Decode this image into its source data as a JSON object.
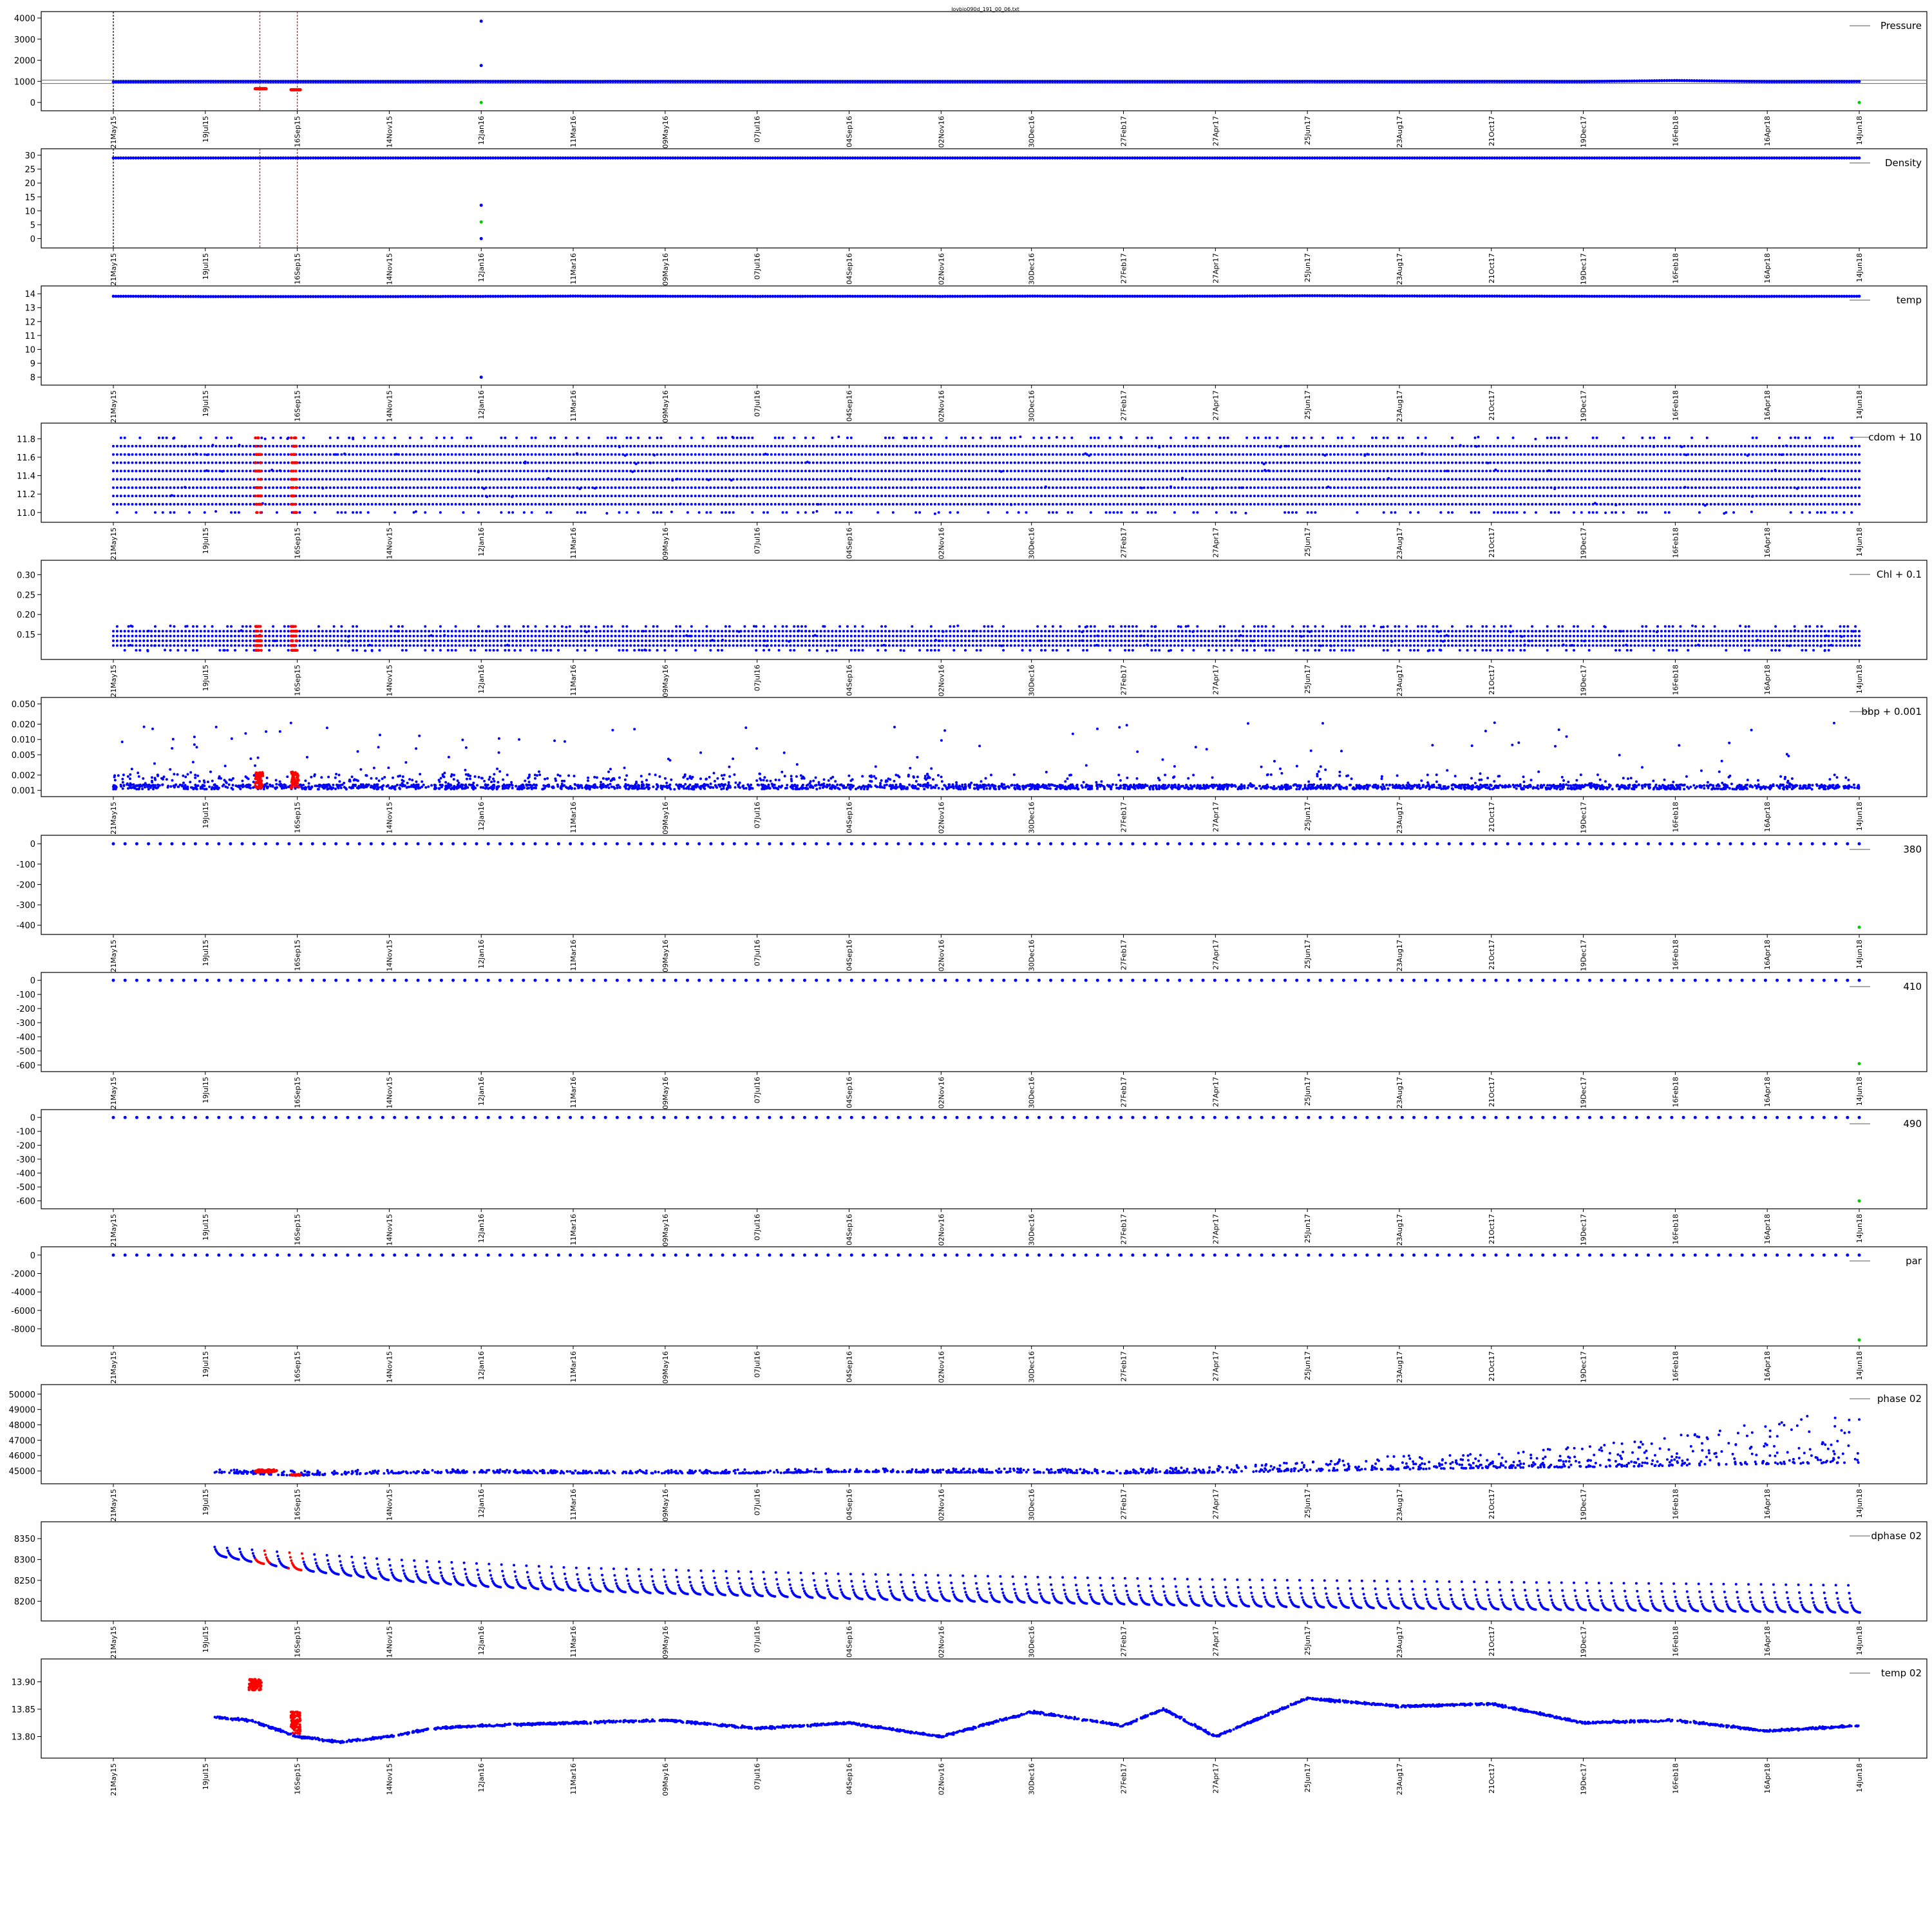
{
  "figure_title": "lovbio090d_191_00_06.txt",
  "colors": {
    "primary": "#0000ff",
    "flagged": "#ff0000",
    "endpoint": "#00cc00",
    "vline_black": "#000000",
    "vline_red": "#ff0000",
    "frame": "#000000"
  },
  "chart_data": [
    {
      "type": "scatter",
      "legend": "Pressure",
      "legend_position": "top-right",
      "ylim": [
        -150,
        4000
      ],
      "yticks": [
        "4000",
        "3000",
        "2000",
        "1000",
        "0"
      ],
      "reference_lines": [
        900,
        1060
      ],
      "x": [
        "21May15",
        "19Jul15",
        "16Sep15",
        "14Nov15",
        "12Jan16",
        "11Mar16",
        "09May16",
        "07Jul16",
        "04Sep16",
        "02Nov16",
        "30Dec16",
        "27Feb17",
        "27Apr17",
        "25Jun17",
        "23Aug17",
        "21Oct17",
        "19Dec17",
        "16Feb18",
        "16Apr18",
        "14Jun18"
      ],
      "baseline": [
        980,
        990,
        985,
        985,
        990,
        985,
        990,
        985,
        985,
        985,
        985,
        985,
        985,
        990,
        985,
        990,
        985,
        1040,
        985,
        990
      ],
      "outliers": [
        {
          "x": "12Jan16",
          "y": 3850
        },
        {
          "x": "12Jan16",
          "y": 1750
        }
      ],
      "flagged": [
        {
          "x_start": "20Aug15",
          "x_end": "27Aug15",
          "y": 650
        },
        {
          "x_start": "12Sep15",
          "x_end": "18Sep15",
          "y": 600
        }
      ],
      "endpoints": [
        {
          "x": "12Jan16",
          "y": 0
        },
        {
          "x": "14Jun18",
          "y": 0
        }
      ]
    },
    {
      "type": "scatter",
      "legend": "Density",
      "legend_position": "top-right",
      "ylim": [
        -1.5,
        30
      ],
      "yticks": [
        "30",
        "25",
        "20",
        "15",
        "10",
        "5",
        "0"
      ],
      "x": [
        "21May15",
        "19Jul15",
        "16Sep15",
        "14Nov15",
        "12Jan16",
        "11Mar16",
        "09May16",
        "07Jul16",
        "04Sep16",
        "02Nov16",
        "30Dec16",
        "27Feb17",
        "27Apr17",
        "25Jun17",
        "23Aug17",
        "21Oct17",
        "19Dec17",
        "16Feb18",
        "16Apr18",
        "14Jun18"
      ],
      "baseline": [
        29,
        29,
        29,
        29,
        29,
        29,
        29,
        29,
        29,
        29,
        29,
        29,
        29,
        29,
        29,
        29,
        29,
        29,
        29,
        29
      ],
      "outliers": [
        {
          "x": "12Jan16",
          "y": 12
        },
        {
          "x": "12Jan16",
          "y": 0
        }
      ],
      "endpoints": [
        {
          "x": "12Jan16",
          "y": 6
        }
      ]
    },
    {
      "type": "scatter",
      "legend": "temp",
      "legend_position": "top-right",
      "ylim": [
        7.8,
        14.1
      ],
      "yticks": [
        "14",
        "13",
        "12",
        "11",
        "10",
        "9",
        "8"
      ],
      "x": [
        "21May15",
        "19Jul15",
        "16Sep15",
        "14Nov15",
        "12Jan16",
        "11Mar16",
        "09May16",
        "07Jul16",
        "04Sep16",
        "02Nov16",
        "30Dec16",
        "27Feb17",
        "27Apr17",
        "25Jun17",
        "23Aug17",
        "21Oct17",
        "19Dec17",
        "16Feb18",
        "16Apr18",
        "14Jun18"
      ],
      "baseline": [
        13.82,
        13.8,
        13.8,
        13.8,
        13.81,
        13.83,
        13.82,
        13.81,
        13.82,
        13.81,
        13.83,
        13.82,
        13.82,
        13.86,
        13.84,
        13.83,
        13.82,
        13.81,
        13.81,
        13.82
      ],
      "outliers": [
        {
          "x": "12Jan16",
          "y": 8
        }
      ]
    },
    {
      "type": "scatter",
      "legend": "cdom + 10",
      "legend_position": "top-right",
      "ylim": [
        10.95,
        11.9
      ],
      "yticks": [
        "11.8",
        "11.6",
        "11.4",
        "11.2",
        "11.0"
      ],
      "levels": [
        11.0,
        11.09,
        11.18,
        11.27,
        11.36,
        11.45,
        11.54,
        11.63,
        11.72,
        11.81
      ]
    },
    {
      "type": "scatter",
      "legend": "Chl + 0.1",
      "legend_position": "top-right",
      "ylim": [
        0.1,
        0.32
      ],
      "yticks": [
        "0.30",
        "0.25",
        "0.20",
        "0.15"
      ],
      "levels": [
        0.11,
        0.122,
        0.134,
        0.146,
        0.158,
        0.17
      ]
    },
    {
      "type": "scatter",
      "legend": "bbp + 0.001",
      "legend_position": "top-right",
      "log_scale": true,
      "ylim": [
        0.00095,
        0.05
      ],
      "yticks": [
        "0.050",
        "0.020",
        "0.010",
        "0.005",
        "0.002",
        "0.001"
      ]
    },
    {
      "type": "scatter",
      "legend": "380",
      "legend_position": "top-right",
      "ylim": [
        -420,
        10
      ],
      "yticks": [
        "0",
        "-100",
        "-200",
        "-300",
        "-400"
      ],
      "x": [
        "21May15",
        "19Jul15",
        "16Sep15",
        "14Nov15",
        "12Jan16",
        "11Mar16",
        "09May16",
        "07Jul16",
        "04Sep16",
        "02Nov16",
        "30Dec16",
        "27Feb17",
        "27Apr17",
        "25Jun17",
        "23Aug17",
        "21Oct17",
        "19Dec17",
        "16Feb18",
        "16Apr18",
        "14Jun18"
      ],
      "baseline": [
        0,
        0,
        0,
        0,
        0,
        0,
        0,
        0,
        0,
        0,
        0,
        0,
        0,
        0,
        0,
        0,
        0,
        0,
        0,
        0
      ],
      "endpoints": [
        {
          "x": "14Jun18",
          "y": -410
        }
      ]
    },
    {
      "type": "scatter",
      "legend": "410",
      "legend_position": "top-right",
      "ylim": [
        -610,
        10
      ],
      "yticks": [
        "0",
        "-100",
        "-200",
        "-300",
        "-400",
        "-500",
        "-600"
      ],
      "x": [
        "21May15",
        "19Jul15",
        "16Sep15",
        "14Nov15",
        "12Jan16",
        "11Mar16",
        "09May16",
        "07Jul16",
        "04Sep16",
        "02Nov16",
        "30Dec16",
        "27Feb17",
        "27Apr17",
        "25Jun17",
        "23Aug17",
        "21Oct17",
        "19Dec17",
        "16Feb18",
        "16Apr18",
        "14Jun18"
      ],
      "baseline": [
        0,
        0,
        0,
        0,
        0,
        0,
        0,
        0,
        0,
        0,
        0,
        0,
        0,
        0,
        0,
        0,
        0,
        0,
        0,
        0
      ],
      "endpoints": [
        {
          "x": "14Jun18",
          "y": -590
        }
      ]
    },
    {
      "type": "scatter",
      "legend": "490",
      "legend_position": "top-right",
      "ylim": [
        -620,
        10
      ],
      "yticks": [
        "0",
        "-100",
        "-200",
        "-300",
        "-400",
        "-500",
        "-600"
      ],
      "x": [
        "21May15",
        "19Jul15",
        "16Sep15",
        "14Nov15",
        "12Jan16",
        "11Mar16",
        "09May16",
        "07Jul16",
        "04Sep16",
        "02Nov16",
        "30Dec16",
        "27Feb17",
        "27Apr17",
        "25Jun17",
        "23Aug17",
        "21Oct17",
        "19Dec17",
        "16Feb18",
        "16Apr18",
        "14Jun18"
      ],
      "baseline": [
        0,
        0,
        0,
        0,
        0,
        0,
        0,
        0,
        0,
        0,
        0,
        0,
        0,
        0,
        0,
        0,
        0,
        0,
        0,
        0
      ],
      "endpoints": [
        {
          "x": "14Jun18",
          "y": -600
        }
      ]
    },
    {
      "type": "scatter",
      "legend": "par",
      "legend_position": "top-right",
      "ylim": [
        -9300,
        200
      ],
      "yticks": [
        "0",
        "-2000",
        "-4000",
        "-6000",
        "-8000"
      ],
      "x": [
        "21May15",
        "19Jul15",
        "16Sep15",
        "14Nov15",
        "12Jan16",
        "11Mar16",
        "09May16",
        "07Jul16",
        "04Sep16",
        "02Nov16",
        "30Dec16",
        "27Feb17",
        "27Apr17",
        "25Jun17",
        "23Aug17",
        "21Oct17",
        "19Dec17",
        "16Feb18",
        "16Apr18",
        "14Jun18"
      ],
      "baseline": [
        0,
        0,
        0,
        0,
        0,
        0,
        0,
        0,
        0,
        0,
        0,
        0,
        0,
        0,
        0,
        0,
        0,
        0,
        0,
        0
      ],
      "endpoints": [
        {
          "x": "14Jun18",
          "y": -9200
        }
      ]
    },
    {
      "type": "scatter",
      "legend": "phase 02",
      "legend_position": "top-right",
      "ylim": [
        44500,
        50200
      ],
      "yticks": [
        "50000",
        "49000",
        "48000",
        "47000",
        "46000",
        "45000"
      ],
      "x": [
        "25Jul15",
        "16Sep15",
        "14Nov15",
        "12Jan16",
        "11Mar16",
        "09May16",
        "07Jul16",
        "04Sep16",
        "02Nov16",
        "30Dec16",
        "27Feb17",
        "27Apr17",
        "25Jun17",
        "23Aug17",
        "21Oct17",
        "19Dec17",
        "16Feb18",
        "16Apr18",
        "14Jun18"
      ],
      "baseline": [
        44900,
        44700,
        44850,
        44900,
        44850,
        44850,
        44850,
        44950,
        44900,
        44900,
        44850,
        44900,
        45000,
        45100,
        45200,
        45250,
        45350,
        45450,
        45550
      ],
      "peak": [
        45100,
        45000,
        45100,
        45100,
        45050,
        45050,
        45100,
        45150,
        45150,
        45150,
        45100,
        45300,
        45700,
        46000,
        46200,
        46600,
        47300,
        48200,
        49300
      ]
    },
    {
      "type": "scatter",
      "legend": "dphase 02",
      "legend_position": "top-right",
      "ylim": [
        8165,
        8375
      ],
      "yticks": [
        "8350",
        "8300",
        "8250",
        "8200"
      ],
      "x": [
        "25Jul15",
        "16Sep15",
        "14Nov15",
        "12Jan16",
        "11Mar16",
        "09May16",
        "07Jul16",
        "04Sep16",
        "02Nov16",
        "30Dec16",
        "27Feb17",
        "27Apr17",
        "25Jun17",
        "23Aug17",
        "21Oct17",
        "19Dec17",
        "16Feb18",
        "16Apr18",
        "14Jun18"
      ],
      "baseline": [
        8310,
        8275,
        8250,
        8235,
        8225,
        8218,
        8212,
        8205,
        8200,
        8196,
        8192,
        8188,
        8185,
        8182,
        8180,
        8178,
        8176,
        8174,
        8172
      ],
      "peak": [
        8330,
        8315,
        8300,
        8290,
        8280,
        8275,
        8270,
        8265,
        8262,
        8258,
        8255,
        8252,
        8250,
        8248,
        8246,
        8244,
        8242,
        8240,
        8238
      ]
    },
    {
      "type": "scatter",
      "legend": "temp 02",
      "legend_position": "top-right",
      "ylim": [
        13.77,
        13.93
      ],
      "yticks": [
        "13.90",
        "13.85",
        "13.80"
      ],
      "x": [
        "25Jul15",
        "16Aug15",
        "16Sep15",
        "14Oct15",
        "14Nov15",
        "12Dec15",
        "12Jan16",
        "11Mar16",
        "09May16",
        "07Jul16",
        "04Sep16",
        "02Nov16",
        "30Dec16",
        "27Feb17",
        "25Mar17",
        "27Apr17",
        "25Jun17",
        "23Aug17",
        "21Oct17",
        "19Dec17",
        "16Feb18",
        "16Apr18",
        "14Jun18"
      ],
      "baseline": [
        13.835,
        13.83,
        13.8,
        13.79,
        13.8,
        13.815,
        13.82,
        13.825,
        13.83,
        13.815,
        13.825,
        13.8,
        13.845,
        13.82,
        13.85,
        13.8,
        13.87,
        13.855,
        13.86,
        13.825,
        13.83,
        13.81,
        13.82
      ],
      "flagged": [
        {
          "x": "16Aug15",
          "y": 13.905
        },
        {
          "x": "16Sep15",
          "y": 13.83
        }
      ]
    }
  ],
  "shared_x_axis": {
    "ticks": [
      "21May15",
      "19Jul15",
      "16Sep15",
      "14Nov15",
      "12Jan16",
      "11Mar16",
      "09May16",
      "07Jul16",
      "04Sep16",
      "02Nov16",
      "30Dec16",
      "27Feb17",
      "27Apr17",
      "25Jun17",
      "23Aug17",
      "21Oct17",
      "19Dec17",
      "16Feb18",
      "16Apr18",
      "14Jun18"
    ],
    "markers": [
      {
        "x": "21May15",
        "color": "black"
      },
      {
        "x": "23Aug15",
        "color": "red"
      },
      {
        "x": "16Sep15",
        "color": "red"
      }
    ]
  }
}
